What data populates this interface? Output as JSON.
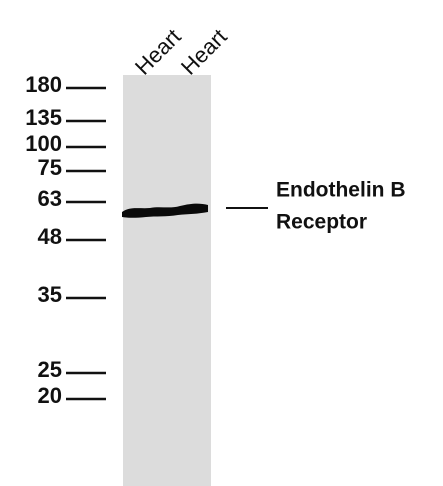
{
  "lanes": [
    "Heart",
    "Heart"
  ],
  "markers": [
    180,
    135,
    100,
    75,
    63,
    48,
    35,
    25,
    20
  ],
  "band_label": [
    "Endothelin B",
    "Receptor"
  ]
}
